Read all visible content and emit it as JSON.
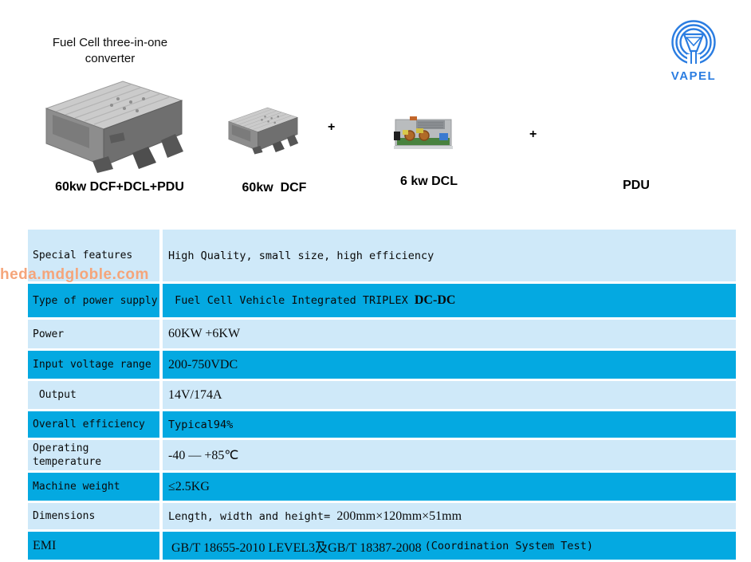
{
  "header": {
    "title_line1": "Fuel Cell three-in-one",
    "title_line2": "converter",
    "logo_text": "VAPEL",
    "logo_color": "#2b7de1"
  },
  "products": {
    "plus": "+",
    "items": [
      {
        "label": "60kw DCF+DCL+PDU"
      },
      {
        "label": "60kw  DCF"
      },
      {
        "label": "6 kw DCL"
      },
      {
        "label": "PDU"
      }
    ]
  },
  "watermark": {
    "text": "heda.mdgloble.com",
    "color": "#f5a57a"
  },
  "table": {
    "colors": {
      "dark_row": "#04a9e1",
      "light_row": "#cfe9f9"
    },
    "rows": [
      {
        "label": "Special features",
        "shade": "light",
        "parts": [
          {
            "t": "High Quality, small size, high efficiency",
            "f": "mono"
          }
        ]
      },
      {
        "label": "Type of power supply",
        "shade": "dark",
        "parts": [
          {
            "t": " Fuel Cell Vehicle Integrated TRIPLEX ",
            "f": "mono"
          },
          {
            "t": "DC-DC",
            "f": "serifb"
          }
        ]
      },
      {
        "label": "Power",
        "shade": "light",
        "parts": [
          {
            "t": "60KW +6KW",
            "f": "serif"
          }
        ]
      },
      {
        "label": "Input voltage range",
        "shade": "dark",
        "parts": [
          {
            "t": "200-750VDC",
            "f": "serif"
          }
        ]
      },
      {
        "label": " Output",
        "shade": "light",
        "parts": [
          {
            "t": "14V/174A",
            "f": "serif"
          }
        ]
      },
      {
        "label": "Overall efficiency",
        "shade": "dark",
        "parts": [
          {
            "t": "Typical94%",
            "f": "mono"
          }
        ]
      },
      {
        "label": "Operating temperature",
        "shade": "light",
        "parts": [
          {
            "t": "-40 — +85℃",
            "f": "serif"
          }
        ]
      },
      {
        "label": "Machine weight",
        "shade": "dark",
        "parts": [
          {
            "t": "≤2.5KG",
            "f": "serif"
          }
        ]
      },
      {
        "label": "Dimensions",
        "shade": "light",
        "parts": [
          {
            "t": "Length, width and height= ",
            "f": "mono"
          },
          {
            "t": "200mm×120mm×51mm",
            "f": "serif"
          }
        ]
      },
      {
        "label": "EMI",
        "label_font": "serif",
        "shade": "dark",
        "parts": [
          {
            "t": " GB/T 18655-2010 LEVEL3及GB/T 18387-2008 ",
            "f": "serif"
          },
          {
            "t": "(Coordination System Test)",
            "f": "mono"
          }
        ]
      }
    ]
  }
}
